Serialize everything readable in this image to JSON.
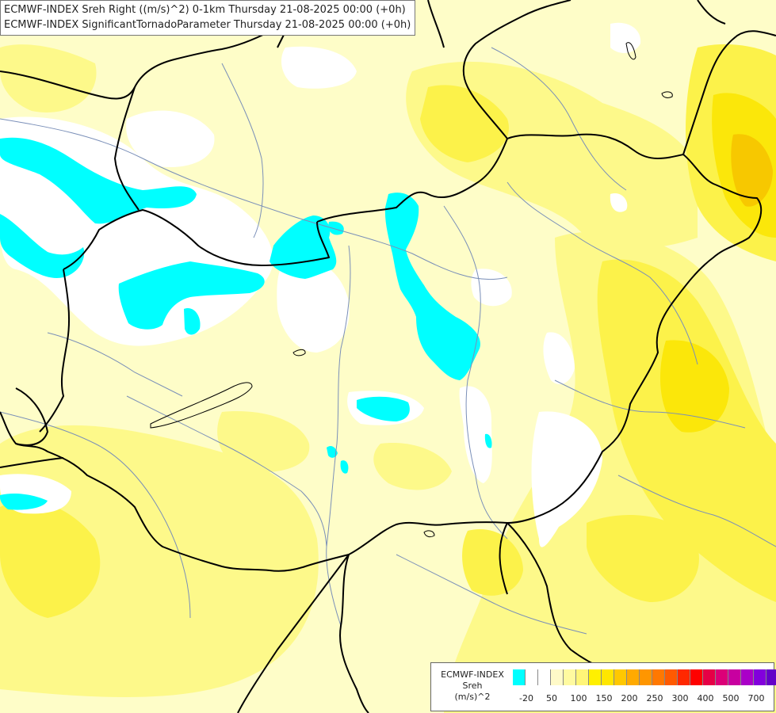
{
  "title": {
    "line1": "ECMWF-INDEX Sreh Right ((m/s)^2) 0-1km Thursday 21-08-2025 00:00 (+0h)",
    "line2": "ECMWF-INDEX SignificantTornadoParameter Thursday 21-08-2025 00:00 (+0h)"
  },
  "legend": {
    "title_line1": "ECMWF-INDEX",
    "title_line2": "Sreh",
    "title_line3": "(m/s)^2",
    "colors": [
      "#00ffff",
      "#ffffff",
      "#ffffff",
      "#fffac8",
      "#fffaa0",
      "#fff578",
      "#fff000",
      "#ffe600",
      "#ffc800",
      "#ffaa00",
      "#ff9600",
      "#ff7800",
      "#ff5a00",
      "#ff2800",
      "#ff0000",
      "#e60046",
      "#dc0078",
      "#c800a0",
      "#aa00c8",
      "#8200dc",
      "#6400c8",
      "#3200b4",
      "#1e0096"
    ],
    "labels": [
      "-20",
      "50",
      "100",
      "150",
      "200",
      "250",
      "300",
      "400",
      "500",
      "700"
    ]
  },
  "colors": {
    "background_pale_yellow": "#fefdc8",
    "light_yellow": "#fdf98a",
    "yellow": "#fcf24a",
    "strong_yellow": "#fbe70a",
    "orange": "#f7c800",
    "cyan": "#00ffff",
    "white": "#ffffff",
    "border": "#000000",
    "river": "#7a8fb8"
  }
}
